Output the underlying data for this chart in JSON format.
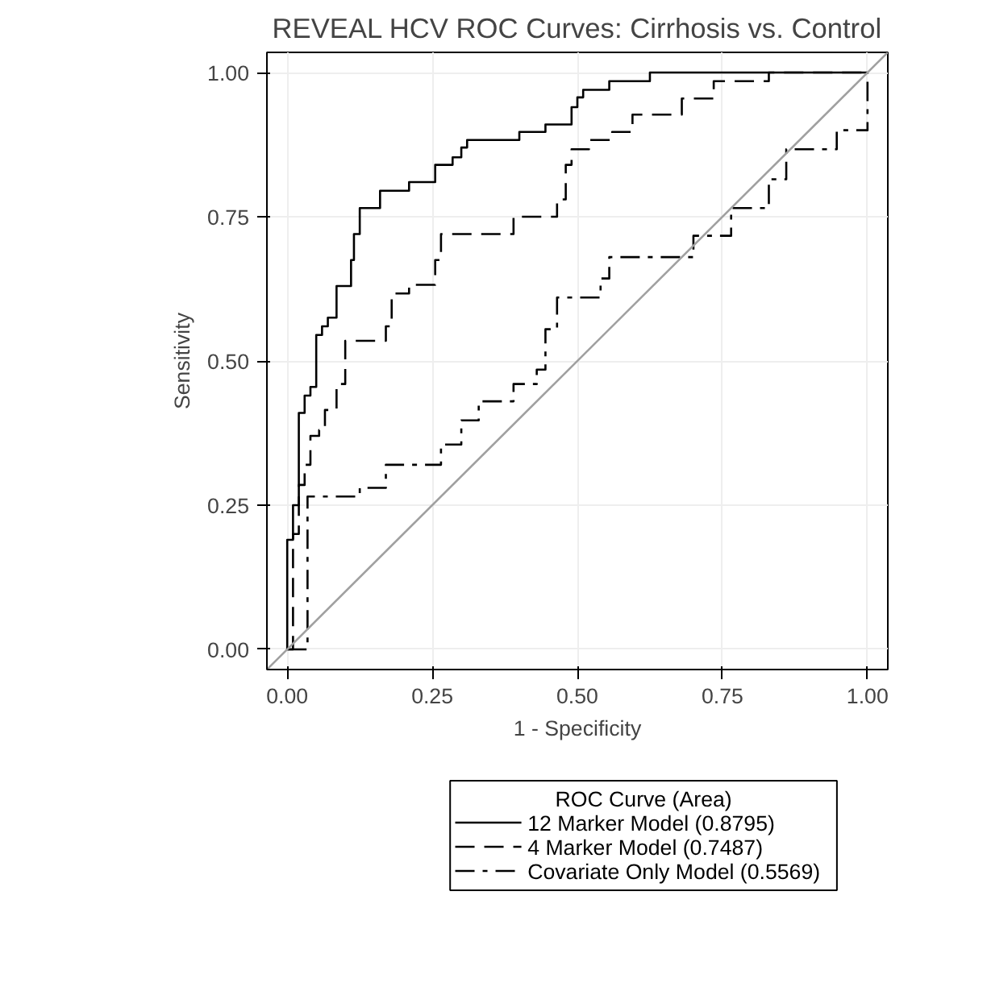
{
  "chart_data": {
    "type": "line",
    "title": "REVEAL HCV ROC Curves: Cirrhosis vs. Control",
    "xlabel": "1 - Specificity",
    "ylabel": "Sensitivity",
    "legend_title": "ROC Curve (Area)",
    "legend": "bottom",
    "grid": true,
    "marker": "none",
    "xlim": [
      -0.035,
      1.035
    ],
    "ylim": [
      -0.035,
      1.035
    ],
    "xticks": [
      {
        "value": 0,
        "label": "0.00"
      },
      {
        "value": 0.25,
        "label": "0.25"
      },
      {
        "value": 0.5,
        "label": "0.50"
      },
      {
        "value": 0.75,
        "label": "0.75"
      },
      {
        "value": 1,
        "label": "1.00"
      }
    ],
    "yticks": [
      {
        "value": 0,
        "label": "0.00"
      },
      {
        "value": 0.25,
        "label": "0.25"
      },
      {
        "value": 0.5,
        "label": "0.50"
      },
      {
        "value": 0.75,
        "label": "0.75"
      },
      {
        "value": 1,
        "label": "1.00"
      }
    ],
    "series": [
      {
        "name": "12 Marker Model  (0.8795)",
        "color": "#000000",
        "line_style": "solid",
        "x": [
          0,
          0,
          0.01,
          0.01,
          0.02,
          0.02,
          0.03,
          0.03,
          0.04,
          0.04,
          0.05,
          0.05,
          0.06,
          0.06,
          0.07,
          0.07,
          0.085,
          0.085,
          0.11,
          0.11,
          0.115,
          0.115,
          0.125,
          0.125,
          0.16,
          0.16,
          0.21,
          0.21,
          0.255,
          0.255,
          0.285,
          0.285,
          0.3,
          0.3,
          0.31,
          0.31,
          0.4,
          0.4,
          0.445,
          0.445,
          0.49,
          0.49,
          0.5,
          0.5,
          0.51,
          0.51,
          0.555,
          0.555,
          0.625,
          0.625,
          1
        ],
        "values": [
          0,
          0.19,
          0.19,
          0.25,
          0.25,
          0.41,
          0.41,
          0.44,
          0.44,
          0.455,
          0.455,
          0.545,
          0.545,
          0.56,
          0.56,
          0.575,
          0.575,
          0.63,
          0.63,
          0.675,
          0.675,
          0.72,
          0.72,
          0.765,
          0.765,
          0.795,
          0.795,
          0.81,
          0.81,
          0.84,
          0.84,
          0.853,
          0.853,
          0.87,
          0.87,
          0.883,
          0.883,
          0.897,
          0.897,
          0.91,
          0.91,
          0.94,
          0.94,
          0.957,
          0.957,
          0.97,
          0.97,
          0.985,
          0.985,
          1,
          1
        ]
      },
      {
        "name": "4 Marker Model  (0.7487)",
        "color": "#000000",
        "line_style": "dashed",
        "x": [
          0,
          0.01,
          0.01,
          0.02,
          0.02,
          0.03,
          0.03,
          0.04,
          0.04,
          0.055,
          0.055,
          0.065,
          0.065,
          0.085,
          0.085,
          0.1,
          0.1,
          0.17,
          0.17,
          0.18,
          0.18,
          0.21,
          0.21,
          0.255,
          0.255,
          0.265,
          0.265,
          0.39,
          0.39,
          0.465,
          0.465,
          0.48,
          0.48,
          0.49,
          0.49,
          0.52,
          0.52,
          0.56,
          0.56,
          0.595,
          0.595,
          0.68,
          0.68,
          0.735,
          0.735,
          0.83,
          0.83,
          0.97,
          0.97,
          1
        ],
        "values": [
          0,
          0,
          0.2,
          0.2,
          0.285,
          0.285,
          0.32,
          0.32,
          0.37,
          0.37,
          0.38,
          0.38,
          0.415,
          0.415,
          0.46,
          0.46,
          0.535,
          0.535,
          0.56,
          0.56,
          0.617,
          0.617,
          0.632,
          0.632,
          0.675,
          0.675,
          0.72,
          0.72,
          0.75,
          0.75,
          0.78,
          0.78,
          0.84,
          0.84,
          0.867,
          0.867,
          0.883,
          0.883,
          0.897,
          0.897,
          0.927,
          0.927,
          0.955,
          0.955,
          0.985,
          0.985,
          1,
          1,
          1,
          1
        ]
      },
      {
        "name": "Covariate Only Model  (0.5569)",
        "color": "#000000",
        "line_style": "dashdot",
        "x": [
          0,
          0.035,
          0.035,
          0.125,
          0.125,
          0.17,
          0.17,
          0.265,
          0.265,
          0.3,
          0.3,
          0.33,
          0.33,
          0.39,
          0.39,
          0.43,
          0.43,
          0.445,
          0.445,
          0.465,
          0.465,
          0.54,
          0.54,
          0.555,
          0.555,
          0.7,
          0.7,
          0.765,
          0.765,
          0.83,
          0.83,
          0.86,
          0.86,
          0.947,
          0.947,
          1,
          1,
          1
        ],
        "values": [
          0,
          0,
          0.265,
          0.265,
          0.28,
          0.28,
          0.32,
          0.32,
          0.355,
          0.355,
          0.397,
          0.397,
          0.43,
          0.43,
          0.46,
          0.46,
          0.485,
          0.485,
          0.555,
          0.555,
          0.61,
          0.61,
          0.643,
          0.643,
          0.68,
          0.68,
          0.717,
          0.717,
          0.765,
          0.765,
          0.815,
          0.815,
          0.867,
          0.867,
          0.9,
          0.9,
          0.913,
          1
        ]
      },
      {
        "color": "#a0a0a0",
        "line_style": "solid",
        "x": [
          -0.035,
          1.035
        ],
        "values": [
          -0.035,
          1.035
        ]
      }
    ]
  }
}
